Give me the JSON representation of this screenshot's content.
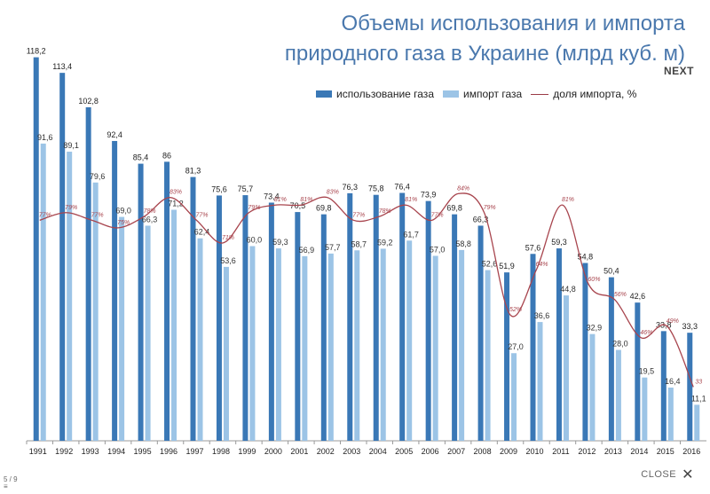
{
  "ui": {
    "next_label": "NEXT",
    "close_label": "CLOSE",
    "close_glyph": "✕",
    "slide_counter": "5 / 9",
    "menu_glyph": "≡"
  },
  "colors": {
    "series1": "#3a78b6",
    "series2": "#9cc4e6",
    "line": "#a8454e",
    "axis": "#999999",
    "title": "#4a78ad"
  },
  "chart_data": {
    "type": "bar",
    "title_lines": [
      "Объемы использования и импорта",
      "природного газа в Украине (млрд куб. м)"
    ],
    "categories": [
      "1991",
      "1992",
      "1993",
      "1994",
      "1995",
      "1996",
      "1997",
      "1998",
      "1999",
      "2000",
      "2001",
      "2002",
      "2003",
      "2004",
      "2005",
      "2006",
      "2007",
      "2008",
      "2009",
      "2010",
      "2011",
      "2012",
      "2013",
      "2014",
      "2015",
      "2016"
    ],
    "series": [
      {
        "name": "использование газа",
        "values": [
          118.2,
          113.4,
          102.8,
          92.4,
          85.4,
          86,
          81.3,
          75.6,
          75.7,
          73.4,
          70.5,
          69.8,
          76.3,
          75.8,
          76.4,
          73.9,
          69.8,
          66.3,
          51.9,
          57.6,
          59.3,
          54.8,
          50.4,
          42.6,
          33.8,
          33.3
        ],
        "labels": [
          "118,2",
          "113,4",
          "102,8",
          "92,4",
          "85,4",
          "86",
          "81,3",
          "75,6",
          "75,7",
          "73,4",
          "70,5",
          "69,8",
          "76,3",
          "75,8",
          "76,4",
          "73,9",
          "69,8",
          "66,3",
          "51,9",
          "57,6",
          "59,3",
          "54,8",
          "50,4",
          "42,6",
          "33,8",
          "33,3"
        ]
      },
      {
        "name": "импорт газа",
        "values": [
          91.6,
          89.1,
          79.6,
          69.0,
          66.3,
          71.2,
          62.4,
          53.6,
          60.0,
          59.3,
          56.9,
          57.7,
          58.7,
          59.2,
          61.7,
          57.0,
          58.8,
          52.6,
          27.0,
          36.6,
          44.8,
          32.9,
          28.0,
          19.5,
          16.4,
          11.1
        ],
        "labels": [
          "91,6",
          "89,1",
          "79,6",
          "69,0",
          "66,3",
          "71,2",
          "62,4",
          "53,6",
          "60,0",
          "59,3",
          "56,9",
          "57,7",
          "58,7",
          "59,2",
          "61,7",
          "57,0",
          "58,8",
          "52,6",
          "27,0",
          "36,6",
          "44,8",
          "32,9",
          "28,0",
          "19,5",
          "16,4",
          "11,1"
        ]
      },
      {
        "name": "доля импорта, %",
        "values": [
          77,
          79,
          77,
          75,
          78,
          83,
          77,
          71,
          79,
          81,
          81,
          83,
          77,
          78,
          81,
          77,
          84,
          79,
          52,
          64,
          81,
          60,
          56,
          46,
          49,
          33
        ],
        "labels": [
          "77%",
          "79%",
          "77%",
          "75%",
          "78%",
          "83%",
          "77%",
          "71%",
          "79%",
          "81%",
          "81%",
          "83%",
          "77%",
          "78%",
          "81%",
          "77%",
          "84%",
          "79%",
          "52%",
          "64%",
          "81%",
          "60%",
          "56%",
          "46%",
          "49%",
          "33"
        ]
      }
    ],
    "ylim_bars": [
      0,
      120
    ],
    "ylim_line": [
      0,
      100
    ],
    "legend_position": "top",
    "grid": false
  }
}
